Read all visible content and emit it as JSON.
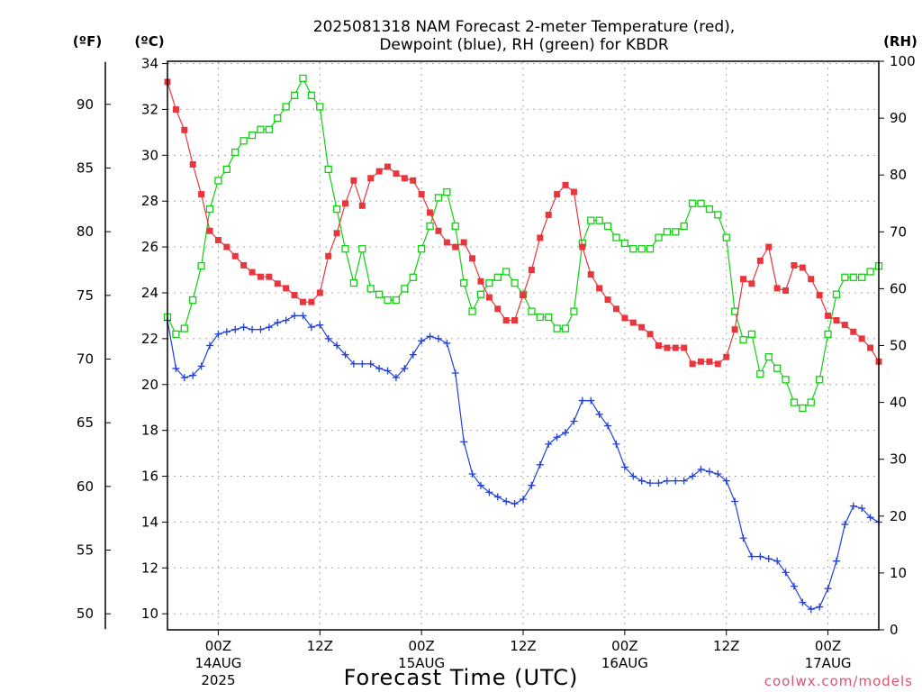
{
  "title_line1": "2025081318 NAM Forecast 2-meter Temperature (red),",
  "title_line2": "Dewpoint (blue), RH (green) for KBDR",
  "unit_f": "(ºF)",
  "unit_c": "(ºC)",
  "unit_rh": "(RH)",
  "x_axis_label": "Forecast Time (UTC)",
  "credit": "coolwx.com/models",
  "colors": {
    "temperature": "#e8363c",
    "dewpoint": "#2040d8",
    "rh": "#10d010"
  },
  "chart_data": {
    "type": "line",
    "title": "2025081318 NAM Forecast 2-meter Temperature (red), Dewpoint (blue), RH (green) for KBDR",
    "xlabel": "Forecast Time (UTC)",
    "x_unit": "hours from 2025-08-13 18Z",
    "xlim": [
      0,
      84
    ],
    "x_ticks": [
      {
        "x": 6,
        "label": "00Z",
        "sub": "14AUG",
        "sub2": "2025"
      },
      {
        "x": 18,
        "label": "12Z"
      },
      {
        "x": 30,
        "label": "00Z",
        "sub": "15AUG"
      },
      {
        "x": 42,
        "label": "12Z"
      },
      {
        "x": 54,
        "label": "00Z",
        "sub": "16AUG"
      },
      {
        "x": 66,
        "label": "12Z"
      },
      {
        "x": 78,
        "label": "00Z",
        "sub": "17AUG"
      }
    ],
    "axes": {
      "celsius": {
        "label": "(ºC)",
        "range": [
          9.3,
          34.1
        ],
        "ticks": [
          10,
          12,
          14,
          16,
          18,
          20,
          22,
          24,
          26,
          28,
          30,
          32,
          34
        ]
      },
      "fahrenheit": {
        "label": "(ºF)",
        "ticks": [
          50,
          55,
          60,
          65,
          70,
          75,
          80,
          85,
          90
        ]
      },
      "rh": {
        "label": "(RH)",
        "range": [
          0,
          100
        ],
        "ticks": [
          0,
          10,
          20,
          30,
          40,
          50,
          60,
          70,
          80,
          90,
          100
        ]
      }
    },
    "grid": true,
    "series": [
      {
        "name": "Temperature",
        "unit": "°C",
        "marker": "filled-square",
        "x": [
          0,
          1,
          2,
          3,
          4,
          5,
          6,
          7,
          8,
          9,
          10,
          11,
          12,
          13,
          14,
          15,
          16,
          17,
          18,
          19,
          20,
          21,
          22,
          23,
          24,
          25,
          26,
          27,
          28,
          29,
          30,
          31,
          32,
          33,
          34,
          35,
          36,
          37,
          38,
          39,
          40,
          41,
          42,
          43,
          44,
          45,
          46,
          47,
          48,
          49,
          50,
          51,
          52,
          53,
          54,
          55,
          56,
          57,
          58,
          59,
          60,
          61,
          62,
          63,
          64,
          65,
          66,
          67,
          68,
          69,
          70,
          71,
          72,
          73,
          74,
          75,
          76,
          77,
          78,
          79,
          80,
          81,
          82,
          83,
          84
        ],
        "values": [
          33.2,
          32.0,
          31.1,
          29.6,
          28.3,
          26.7,
          26.3,
          26.0,
          25.6,
          25.2,
          24.9,
          24.7,
          24.7,
          24.4,
          24.2,
          23.9,
          23.6,
          23.6,
          24.0,
          25.6,
          26.6,
          27.9,
          28.9,
          27.8,
          29.0,
          29.3,
          29.5,
          29.2,
          29.0,
          28.9,
          28.3,
          27.5,
          26.7,
          26.2,
          26.0,
          26.2,
          25.5,
          24.5,
          23.8,
          23.3,
          22.8,
          22.8,
          23.9,
          25.0,
          26.4,
          27.4,
          28.3,
          28.7,
          28.4,
          26.0,
          24.8,
          24.2,
          23.7,
          23.3,
          22.9,
          22.7,
          22.5,
          22.2,
          21.7,
          21.6,
          21.6,
          21.6,
          20.9,
          21.0,
          21.0,
          20.9,
          21.2,
          22.4,
          24.6,
          24.4,
          25.4,
          26.0,
          24.2,
          24.1,
          25.2,
          25.1,
          24.6,
          23.9,
          23.0,
          22.8,
          22.6,
          22.3,
          22.0,
          21.6,
          21.0
        ]
      },
      {
        "name": "Dewpoint",
        "unit": "°C",
        "marker": "plus",
        "x": [
          0,
          1,
          2,
          3,
          4,
          5,
          6,
          7,
          8,
          9,
          10,
          11,
          12,
          13,
          14,
          15,
          16,
          17,
          18,
          19,
          20,
          21,
          22,
          23,
          24,
          25,
          26,
          27,
          28,
          29,
          30,
          31,
          32,
          33,
          34,
          35,
          36,
          37,
          38,
          39,
          40,
          41,
          42,
          43,
          44,
          45,
          46,
          47,
          48,
          49,
          50,
          51,
          52,
          53,
          54,
          55,
          56,
          57,
          58,
          59,
          60,
          61,
          62,
          63,
          64,
          65,
          66,
          67,
          68,
          69,
          70,
          71,
          72,
          73,
          74,
          75,
          76,
          77,
          78,
          79,
          80,
          81,
          82,
          83,
          84
        ],
        "values": [
          22.8,
          20.7,
          20.3,
          20.4,
          20.8,
          21.7,
          22.2,
          22.3,
          22.4,
          22.5,
          22.4,
          22.4,
          22.5,
          22.7,
          22.8,
          23.0,
          23.0,
          22.5,
          22.6,
          22.0,
          21.7,
          21.3,
          20.9,
          20.9,
          20.9,
          20.7,
          20.6,
          20.3,
          20.7,
          21.3,
          21.9,
          22.1,
          22.0,
          21.8,
          20.5,
          17.5,
          16.1,
          15.6,
          15.3,
          15.1,
          14.9,
          14.8,
          15.0,
          15.6,
          16.5,
          17.4,
          17.7,
          17.9,
          18.4,
          19.3,
          19.3,
          18.7,
          18.2,
          17.4,
          16.4,
          16.0,
          15.8,
          15.7,
          15.7,
          15.8,
          15.8,
          15.8,
          16.0,
          16.3,
          16.2,
          16.1,
          15.8,
          14.9,
          13.3,
          12.5,
          12.5,
          12.4,
          12.3,
          11.8,
          11.2,
          10.5,
          10.2,
          10.3,
          11.1,
          12.3,
          13.9,
          14.7,
          14.6,
          14.2,
          14.0
        ]
      },
      {
        "name": "RH",
        "unit": "%",
        "marker": "open-square",
        "x": [
          0,
          1,
          2,
          3,
          4,
          5,
          6,
          7,
          8,
          9,
          10,
          11,
          12,
          13,
          14,
          15,
          16,
          17,
          18,
          19,
          20,
          21,
          22,
          23,
          24,
          25,
          26,
          27,
          28,
          29,
          30,
          31,
          32,
          33,
          34,
          35,
          36,
          37,
          38,
          39,
          40,
          41,
          42,
          43,
          44,
          45,
          46,
          47,
          48,
          49,
          50,
          51,
          52,
          53,
          54,
          55,
          56,
          57,
          58,
          59,
          60,
          61,
          62,
          63,
          64,
          65,
          66,
          67,
          68,
          69,
          70,
          71,
          72,
          73,
          74,
          75,
          76,
          77,
          78,
          79,
          80,
          81,
          82,
          83,
          84
        ],
        "values": [
          55,
          52,
          53,
          58,
          64,
          74,
          79,
          81,
          84,
          86,
          87,
          88,
          88,
          90,
          92,
          94,
          97,
          94,
          92,
          81,
          74,
          67,
          61,
          67,
          60,
          59,
          58,
          58,
          60,
          62,
          67,
          71,
          76,
          77,
          71,
          61,
          56,
          59,
          61,
          62,
          63,
          61,
          59,
          56,
          55,
          55,
          53,
          53,
          56,
          68,
          72,
          72,
          71,
          69,
          68,
          67,
          67,
          67,
          69,
          70,
          70,
          71,
          75,
          75,
          74,
          73,
          69,
          56,
          51,
          52,
          45,
          48,
          46,
          44,
          40,
          39,
          40,
          44,
          52,
          59,
          62,
          62,
          62,
          63,
          64
        ]
      }
    ]
  }
}
